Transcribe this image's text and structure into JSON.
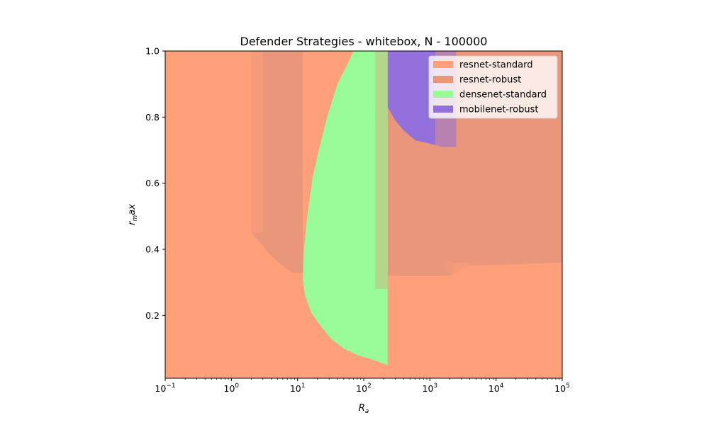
{
  "chart_data": {
    "type": "heatmap",
    "title": "Defender Strategies - whitebox, N - 100000",
    "xlabel": "R_a",
    "ylabel": "r_max",
    "xscale": "log",
    "xlim": [
      0.1,
      100000
    ],
    "ylim": [
      0.01,
      1.0
    ],
    "x_ticks": [
      {
        "value": 0.1,
        "base": "10",
        "exp": "−1"
      },
      {
        "value": 1,
        "base": "10",
        "exp": "0"
      },
      {
        "value": 10,
        "base": "10",
        "exp": "1"
      },
      {
        "value": 100,
        "base": "10",
        "exp": "2"
      },
      {
        "value": 1000,
        "base": "10",
        "exp": "3"
      },
      {
        "value": 10000,
        "base": "10",
        "exp": "4"
      },
      {
        "value": 100000,
        "base": "10",
        "exp": "5"
      }
    ],
    "y_ticks": [
      {
        "value": 0.2,
        "label": "0.2"
      },
      {
        "value": 0.4,
        "label": "0.4"
      },
      {
        "value": 0.6,
        "label": "0.6"
      },
      {
        "value": 0.8,
        "label": "0.8"
      },
      {
        "value": 1.0,
        "label": "1.0"
      }
    ],
    "legend_position": "top-right",
    "grid": false,
    "series": [
      {
        "name": "resnet-standard",
        "color": "#FFA07A"
      },
      {
        "name": "resnet-robust",
        "color": "#E9967A"
      },
      {
        "name": "densenet-standard",
        "color": "#98FB98"
      },
      {
        "name": "mobilenet-robust",
        "color": "#9370DB"
      }
    ],
    "regions": {
      "resnet-standard": "background of the parameter space (all r_max outside other regions)",
      "resnet-robust": {
        "left_lobe": {
          "x_from": 2,
          "x_to": 12,
          "upper_boundary": [
            [
              2,
              0.45
            ],
            [
              3,
              0.41
            ],
            [
              4,
              0.38
            ],
            [
              6,
              0.35
            ],
            [
              8,
              0.33
            ],
            [
              12,
              0.33
            ]
          ]
        },
        "right_band": {
          "x_from": 230,
          "x_to": 100000,
          "lower_boundary": [
            [
              230,
              0.32
            ],
            [
              2000,
              0.32
            ],
            [
              4000,
              0.35
            ],
            [
              100000,
              0.36
            ]
          ]
        }
      },
      "densenet-standard": {
        "x_to": 230,
        "left_boundary": [
          [
            12,
            0.31
          ],
          [
            12.5,
            0.4
          ],
          [
            14,
            0.5
          ],
          [
            17,
            0.62
          ],
          [
            21,
            0.7
          ],
          [
            28,
            0.8
          ],
          [
            40,
            0.9
          ],
          [
            60,
            0.97
          ],
          [
            70,
            1.0
          ]
        ],
        "lower_boundary": [
          [
            12,
            0.31
          ],
          [
            13,
            0.26
          ],
          [
            16,
            0.21
          ],
          [
            22,
            0.17
          ],
          [
            32,
            0.13
          ],
          [
            50,
            0.1
          ],
          [
            80,
            0.08
          ],
          [
            120,
            0.07
          ],
          [
            230,
            0.05
          ]
        ]
      },
      "mobilenet-robust": {
        "x_from": 230,
        "x_to": 2500,
        "lower_boundary": [
          [
            230,
            0.83
          ],
          [
            300,
            0.79
          ],
          [
            400,
            0.76
          ],
          [
            600,
            0.73
          ],
          [
            1000,
            0.72
          ],
          [
            1500,
            0.71
          ],
          [
            2500,
            0.71
          ]
        ]
      }
    }
  }
}
